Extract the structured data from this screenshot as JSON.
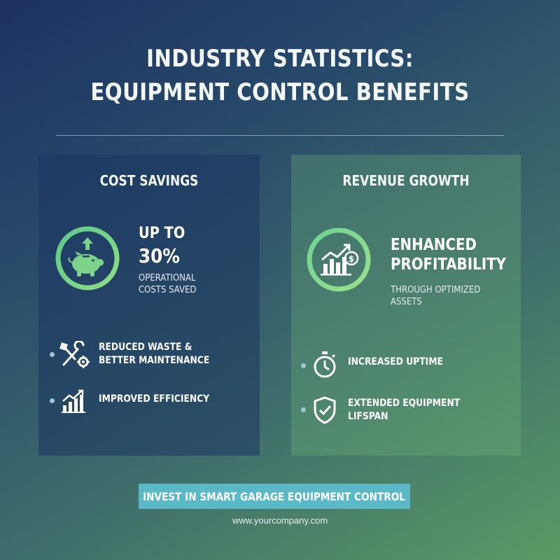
{
  "header": {
    "title_line1": "INDUSTRY STATISTICS:",
    "title_line2": "EQUIPMENT CONTROL BENEFITS"
  },
  "cost_panel": {
    "title": "COST SAVINGS",
    "stat_line1": "UP TO",
    "stat_line2": "30%",
    "caption_line1": "OPERATIONAL",
    "caption_line2": "COSTS SAVED",
    "icon": "piggy-bank-icon",
    "bullets": [
      {
        "line1": "REDUCED WASTE &",
        "line2": "BETTER MAINTENANCE",
        "icon": "tools-gear-icon"
      },
      {
        "line1": "IMPROVED EFFICIENCY",
        "icon": "bar-chart-growth-icon"
      }
    ]
  },
  "revenue_panel": {
    "title": "REVENUE GROWTH",
    "stat_line1": "ENHANCED",
    "stat_line2": "PROFITABILITY",
    "caption": "THROUGH OPTIMIZED ASSETS",
    "icon": "growth-chart-dollar-icon",
    "bullets": [
      {
        "line1": "INCREASED UPTIME",
        "icon": "stopwatch-icon"
      },
      {
        "line1": "EXTENDED EQUIPMENT",
        "line2": "LIFSPAN",
        "icon": "shield-check-icon"
      }
    ]
  },
  "cta": {
    "label": "INVEST IN SMART GARAGE EQUIPMENT CONTROL"
  },
  "footer": {
    "url": "www.yourcompany.com"
  },
  "colors": {
    "accent_green": "#7ed38a",
    "accent_teal": "#5bb8c7",
    "bullet_dot": "#9bc8d6"
  }
}
